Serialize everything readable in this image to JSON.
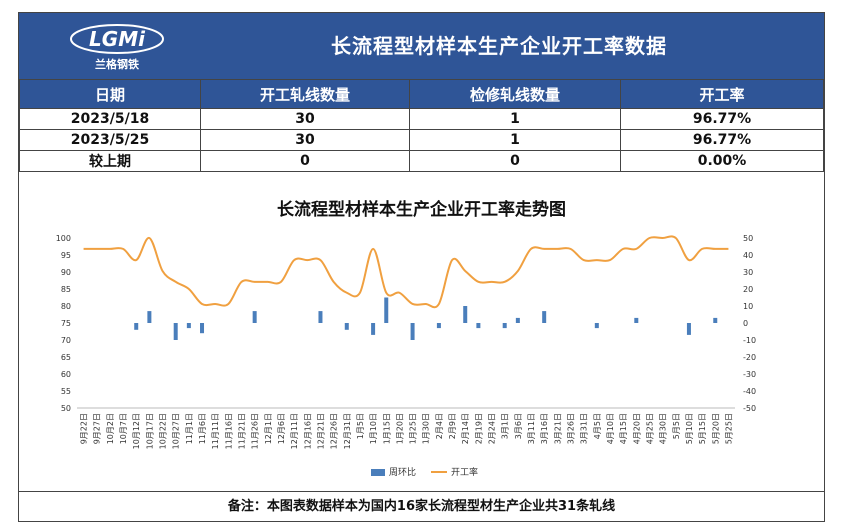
{
  "header": {
    "title": "长流程型材样本生产企业开工率数据",
    "logo_text": "LGMi",
    "logo_subtitle": "兰格钢铁"
  },
  "table": {
    "columns": [
      "日期",
      "开工轧线数量",
      "检修轧线数量",
      "开工率"
    ],
    "rows": [
      [
        "2023/5/18",
        "30",
        "1",
        "96.77%"
      ],
      [
        "2023/5/25",
        "30",
        "1",
        "96.77%"
      ],
      [
        "较上期",
        "0",
        "0",
        "0.00%"
      ]
    ]
  },
  "chart_data": {
    "type": "line",
    "title": "长流程型材样本生产企业开工率走势图",
    "x": [
      "9月22日",
      "9月27日",
      "10月2日",
      "10月7日",
      "10月12日",
      "10月17日",
      "10月22日",
      "10月27日",
      "11月1日",
      "11月6日",
      "11月11日",
      "11月16日",
      "11月21日",
      "11月26日",
      "12月1日",
      "12月6日",
      "12月11日",
      "12月16日",
      "12月21日",
      "12月26日",
      "12月31日",
      "1月5日",
      "1月10日",
      "1月15日",
      "1月20日",
      "1月25日",
      "1月30日",
      "2月4日",
      "2月9日",
      "2月14日",
      "2月19日",
      "2月24日",
      "3月1日",
      "3月6日",
      "3月11日",
      "3月16日",
      "3月21日",
      "3月26日",
      "3月31日",
      "4月5日",
      "4月10日",
      "4月15日",
      "4月20日",
      "4月25日",
      "4月30日",
      "5月5日",
      "5月10日",
      "5月15日",
      "5月20日",
      "5月25日"
    ],
    "series": [
      {
        "name": "周环比",
        "kind": "bar",
        "axis": "right",
        "color": "#4a7ebb",
        "values": [
          0,
          0,
          0,
          0,
          -4,
          7,
          0,
          -10,
          -3,
          -6,
          0,
          0,
          0,
          7,
          0,
          0,
          0,
          0,
          7,
          0,
          -4,
          0,
          -7,
          15,
          0,
          -10,
          0,
          -3,
          0,
          10,
          -3,
          0,
          -3,
          3,
          0,
          7,
          0,
          0,
          0,
          -3,
          0,
          0,
          3,
          0,
          0,
          0,
          -7,
          0,
          3,
          0
        ]
      },
      {
        "name": "开工率",
        "kind": "line",
        "axis": "left",
        "color": "#f0a040",
        "values": [
          96.8,
          96.8,
          96.8,
          96.8,
          93.5,
          100,
          90.3,
          87.1,
          85,
          80.6,
          80.6,
          80.6,
          87.1,
          87.1,
          87.1,
          87.1,
          93.5,
          93.5,
          93.5,
          87.1,
          83.9,
          83.9,
          96.8,
          83.9,
          83.9,
          80.6,
          80.6,
          80.6,
          93.5,
          90.3,
          87.1,
          87.1,
          87.1,
          90.3,
          96.8,
          96.8,
          96.8,
          96.8,
          93.5,
          93.5,
          93.5,
          96.8,
          96.8,
          100,
          100,
          100,
          93.5,
          96.8,
          96.8,
          96.8
        ]
      }
    ],
    "y_left": {
      "min": 50,
      "max": 100,
      "step": 5
    },
    "y_right": {
      "min": -50,
      "max": 50,
      "step": 10
    },
    "legend": {
      "position": "bottom",
      "bar_label": "周环比",
      "line_label": "开工率"
    },
    "grid": false
  },
  "footer": {
    "note": "备注：本图表数据样本为国内16家长流程型材生产企业共31条轧线"
  }
}
